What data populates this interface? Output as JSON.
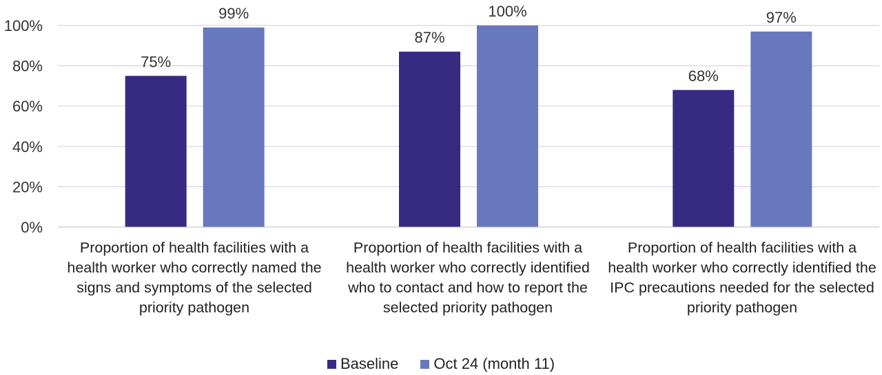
{
  "chart_data": {
    "type": "bar",
    "title": "",
    "xlabel": "",
    "ylabel": "",
    "ylim": [
      0,
      100
    ],
    "yticks": [
      0,
      20,
      40,
      60,
      80,
      100
    ],
    "ytick_labels": [
      "0%",
      "20%",
      "40%",
      "60%",
      "80%",
      "100%"
    ],
    "grid": true,
    "legend_position": "bottom",
    "categories": [
      "Proportion of health facilities with a health worker who correctly named the signs and symptoms of the selected priority pathogen",
      "Proportion of health facilities with a health worker who correctly identified who to contact and how to report the selected priority pathogen",
      "Proportion of health facilities with a health worker who correctly identified the IPC precautions needed for the selected priority pathogen"
    ],
    "series": [
      {
        "name": "Baseline",
        "color": "#372a82",
        "values": [
          75,
          87,
          68
        ],
        "labels": [
          "75%",
          "87%",
          "68%"
        ]
      },
      {
        "name": "Oct 24 (month 11)",
        "color": "#6878bf",
        "values": [
          99,
          100,
          97
        ],
        "labels": [
          "99%",
          "100%",
          "97%"
        ]
      }
    ],
    "colors": {
      "grid": "#d5d3ec",
      "axis": "#bdbdbd"
    }
  }
}
